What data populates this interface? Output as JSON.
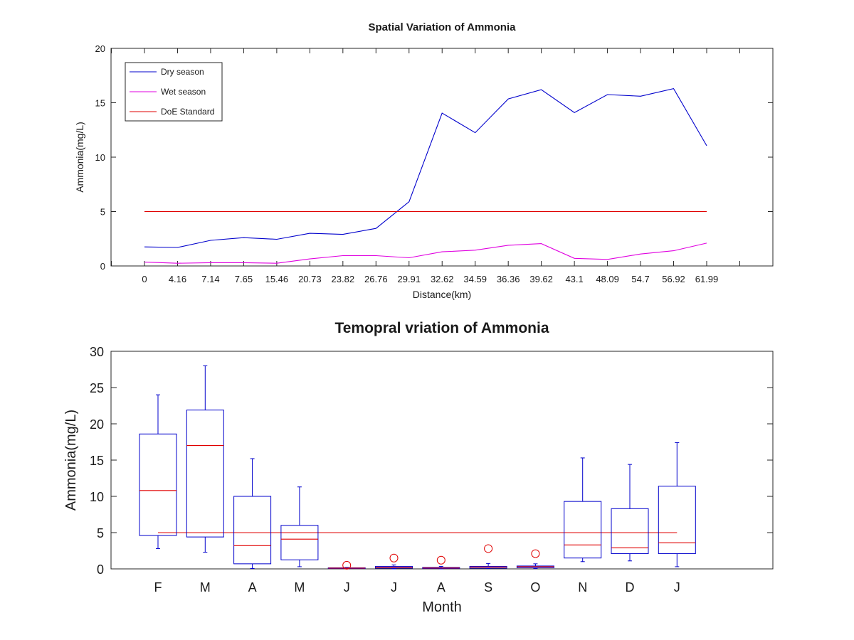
{
  "chart_data": [
    {
      "type": "line",
      "title": "Spatial Variation of Ammonia",
      "xlabel": "Distance(km)",
      "ylabel": "Ammonia(mg/L)",
      "ylim": [
        0,
        20
      ],
      "yticks": [
        0,
        5,
        10,
        15,
        20
      ],
      "x": [
        "0",
        "4.16",
        "7.14",
        "7.65",
        "15.46",
        "20.73",
        "23.82",
        "26.76",
        "29.91",
        "32.62",
        "34.59",
        "36.36",
        "39.62",
        "43.1",
        "48.09",
        "54.7",
        "56.92",
        "61.99"
      ],
      "legend_position": "top-left",
      "grid": false,
      "series": [
        {
          "name": "Dry season",
          "color": "#0000cc",
          "values": [
            1.75,
            1.7,
            2.35,
            2.6,
            2.45,
            3.0,
            2.9,
            3.45,
            5.9,
            14.05,
            12.25,
            15.35,
            16.2,
            14.1,
            15.75,
            15.6,
            16.3,
            11.05
          ]
        },
        {
          "name": "Wet season",
          "color": "#e000e0",
          "values": [
            0.35,
            0.25,
            0.3,
            0.3,
            0.25,
            0.65,
            0.95,
            0.95,
            0.75,
            1.3,
            1.45,
            1.9,
            2.05,
            0.7,
            0.6,
            1.1,
            1.4,
            2.1
          ]
        },
        {
          "name": "DoE Standard",
          "color": "#e00000",
          "values": [
            5,
            5,
            5,
            5,
            5,
            5,
            5,
            5,
            5,
            5,
            5,
            5,
            5,
            5,
            5,
            5,
            5,
            5
          ]
        }
      ]
    },
    {
      "type": "box",
      "title": "Temopral vriation of Ammonia",
      "xlabel": "Month",
      "ylabel": "Ammonia(mg/L)",
      "ylim": [
        0,
        30
      ],
      "yticks": [
        0,
        5,
        10,
        15,
        20,
        25,
        30
      ],
      "categories": [
        "F",
        "M",
        "A",
        "M",
        "J",
        "J",
        "A",
        "S",
        "O",
        "N",
        "D",
        "J"
      ],
      "box_color": "#0000cc",
      "median_color": "#e00000",
      "standard": {
        "value": 5,
        "color": "#e00000"
      },
      "boxes": [
        {
          "whisker_low": 2.8,
          "q1": 4.6,
          "median": 10.8,
          "q3": 18.6,
          "whisker_high": 24.0,
          "outliers": []
        },
        {
          "whisker_low": 2.3,
          "q1": 4.4,
          "median": 17.0,
          "q3": 21.9,
          "whisker_high": 28.0,
          "outliers": []
        },
        {
          "whisker_low": 0.05,
          "q1": 0.7,
          "median": 3.2,
          "q3": 10.0,
          "whisker_high": 15.2,
          "outliers": []
        },
        {
          "whisker_low": 0.3,
          "q1": 1.25,
          "median": 4.1,
          "q3": 6.0,
          "whisker_high": 11.3,
          "outliers": []
        },
        {
          "whisker_low": 0.0,
          "q1": 0.05,
          "median": 0.1,
          "q3": 0.15,
          "whisker_high": 0.2,
          "outliers": [
            0.5
          ]
        },
        {
          "whisker_low": 0.0,
          "q1": 0.1,
          "median": 0.2,
          "q3": 0.35,
          "whisker_high": 0.55,
          "outliers": [
            1.5
          ]
        },
        {
          "whisker_low": 0.0,
          "q1": 0.05,
          "median": 0.12,
          "q3": 0.2,
          "whisker_high": 0.35,
          "outliers": [
            1.2
          ]
        },
        {
          "whisker_low": 0.05,
          "q1": 0.1,
          "median": 0.25,
          "q3": 0.35,
          "whisker_high": 0.75,
          "outliers": [
            2.8
          ]
        },
        {
          "whisker_low": 0.05,
          "q1": 0.15,
          "median": 0.3,
          "q3": 0.4,
          "whisker_high": 0.7,
          "outliers": [
            2.1
          ]
        },
        {
          "whisker_low": 1.0,
          "q1": 1.5,
          "median": 3.3,
          "q3": 9.3,
          "whisker_high": 15.3,
          "outliers": []
        },
        {
          "whisker_low": 1.1,
          "q1": 2.1,
          "median": 2.9,
          "q3": 8.3,
          "whisker_high": 14.4,
          "outliers": []
        },
        {
          "whisker_low": 0.3,
          "q1": 2.1,
          "median": 3.6,
          "q3": 11.4,
          "whisker_high": 17.4,
          "outliers": []
        }
      ]
    }
  ]
}
